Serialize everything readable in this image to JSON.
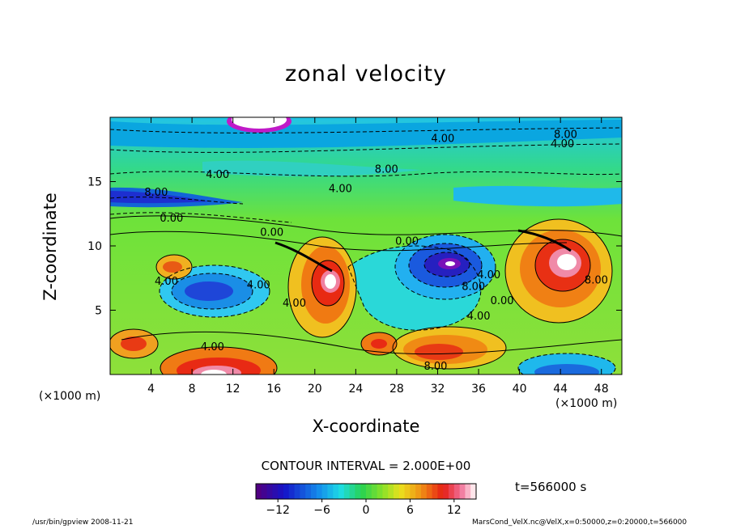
{
  "chart_data": {
    "type": "heatmap",
    "title": "zonal velocity",
    "xlabel": "X-coordinate",
    "ylabel": "Z-coordinate",
    "x_scale_label": "(×1000 m)",
    "y_scale_label": "(×1000 m)",
    "xlim": [
      0,
      50
    ],
    "ylim": [
      0,
      20
    ],
    "x_ticks": [
      "4",
      "8",
      "12",
      "16",
      "20",
      "24",
      "28",
      "32",
      "36",
      "40",
      "44",
      "48"
    ],
    "x_tick_values": [
      4,
      8,
      12,
      16,
      20,
      24,
      28,
      32,
      36,
      40,
      44,
      48
    ],
    "y_ticks": [
      "5",
      "10",
      "15"
    ],
    "y_tick_values": [
      5,
      10,
      15
    ],
    "colorbar": {
      "min": -15,
      "max": 15,
      "ticks": [
        "−12",
        "−6",
        "0",
        "6",
        "12"
      ],
      "tick_values": [
        -12,
        -6,
        0,
        6,
        12
      ]
    },
    "contour_labels": [
      {
        "text": "4.00",
        "x": 32.5,
        "z": 18.4
      },
      {
        "text": "8.00",
        "x": 44.5,
        "z": 18.7
      },
      {
        "text": "4.00",
        "x": 44.2,
        "z": 18.0
      },
      {
        "text": "4.00",
        "x": 10.5,
        "z": 15.6
      },
      {
        "text": "8.00",
        "x": 27.0,
        "z": 16.0
      },
      {
        "text": "4.00",
        "x": 22.5,
        "z": 14.5
      },
      {
        "text": "8.00",
        "x": 4.5,
        "z": 14.2
      },
      {
        "text": "0.00",
        "x": 6.0,
        "z": 12.2
      },
      {
        "text": "0.00",
        "x": 15.8,
        "z": 11.1
      },
      {
        "text": "0.00",
        "x": 29.0,
        "z": 10.4
      },
      {
        "text": "4.00",
        "x": 5.5,
        "z": 7.3
      },
      {
        "text": "4.00",
        "x": 14.5,
        "z": 7.0
      },
      {
        "text": "4.00",
        "x": 18.0,
        "z": 5.6
      },
      {
        "text": "4.00",
        "x": 37.0,
        "z": 7.8
      },
      {
        "text": "8.00",
        "x": 35.5,
        "z": 6.9
      },
      {
        "text": "0.00",
        "x": 38.3,
        "z": 5.8
      },
      {
        "text": "4.00",
        "x": 36.0,
        "z": 4.6
      },
      {
        "text": "8.00",
        "x": 47.5,
        "z": 7.4
      },
      {
        "text": "4.00",
        "x": 10.0,
        "z": 2.2
      },
      {
        "text": "8.00",
        "x": 31.8,
        "z": 0.7
      }
    ]
  },
  "annotations": {
    "contour_interval": "CONTOUR INTERVAL = 2.000E+00",
    "time": "t=566000  s",
    "footer_left": "/usr/bin/gpview  2008-11-21",
    "footer_right": "MarsCond_VelX.nc@VelX,x=0:50000,z=0:20000,t=566000"
  }
}
